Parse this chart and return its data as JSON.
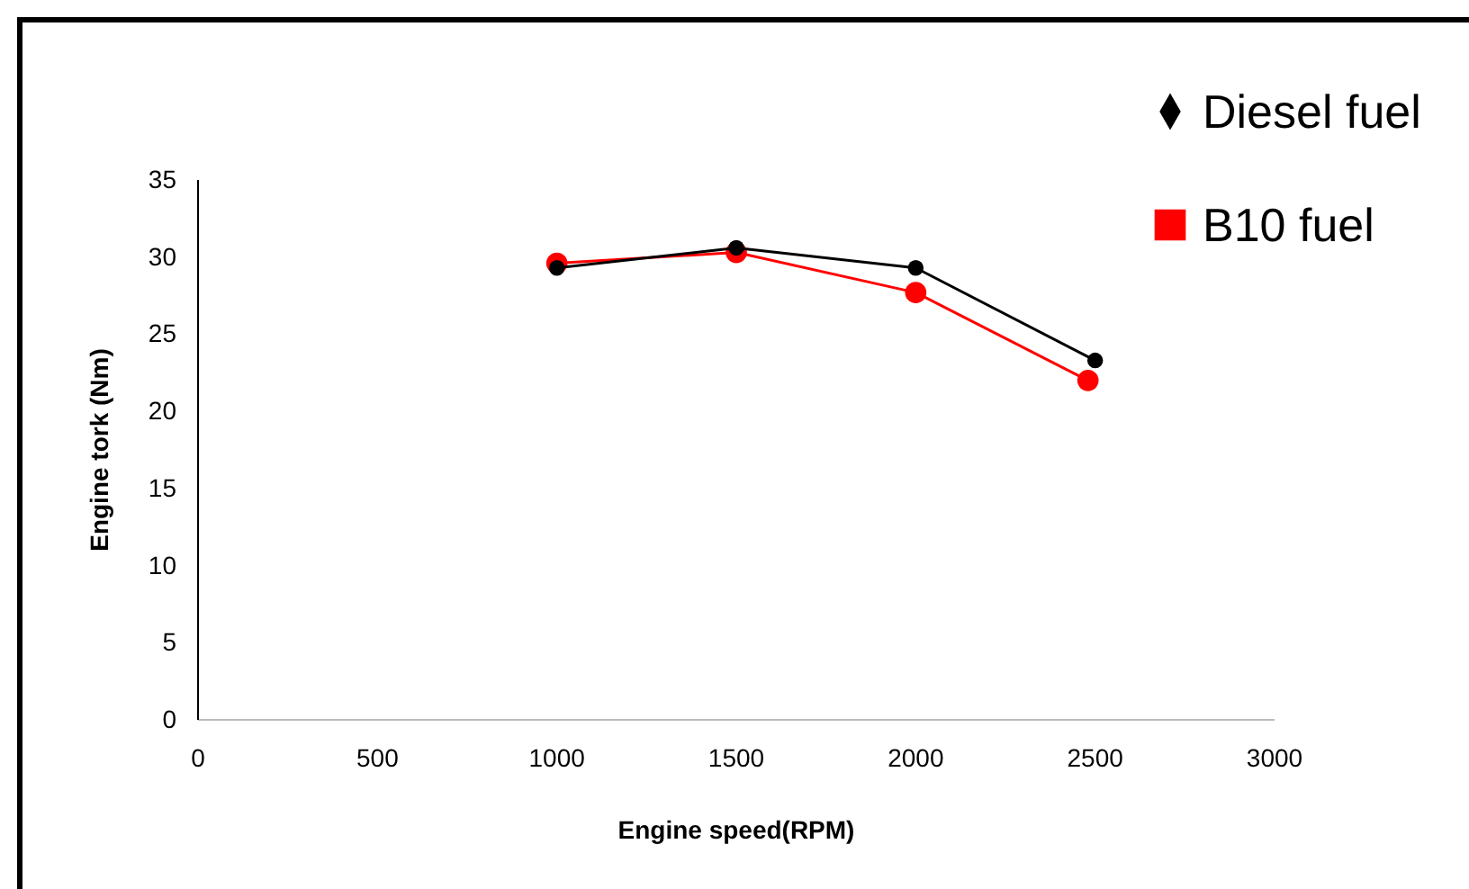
{
  "chart_data": {
    "type": "line",
    "xlabel": "Engine speed(RPM)",
    "ylabel": "Engine tork (Nm)",
    "xlim": [
      0,
      3000
    ],
    "xticks": [
      0,
      500,
      1000,
      1500,
      2000,
      2500,
      3000
    ],
    "ylim": [
      0,
      35
    ],
    "yticks": [
      0,
      5,
      10,
      15,
      20,
      25,
      30,
      35
    ],
    "grid": false,
    "legend": "top right",
    "marker": "circle",
    "line_style": "solid",
    "series": [
      {
        "name": "Diesel fuel",
        "color": "#000000",
        "x": [
          1000,
          1500,
          2000,
          2500
        ],
        "values": [
          29.3,
          30.6,
          29.3,
          23.3
        ]
      },
      {
        "name": "B10 fuel",
        "color": "#ff0000",
        "x": [
          1000,
          1500,
          2000,
          2480
        ],
        "values": [
          29.6,
          30.3,
          27.7,
          22.0
        ]
      }
    ]
  }
}
